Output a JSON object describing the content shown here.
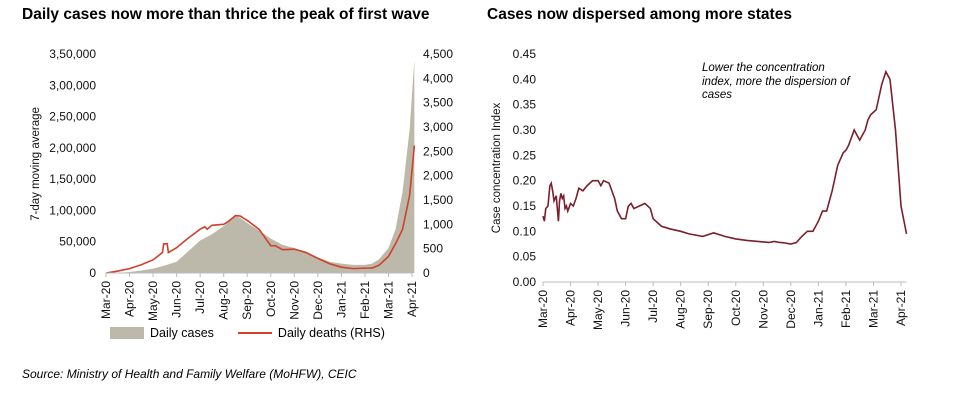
{
  "source": "Source: Ministry of Health and Family Welfare (MoHFW), CEIC",
  "chart_data": [
    {
      "type": "area",
      "title": "Daily cases now more than thrice the peak of first wave",
      "ylabel": "7-day moving average",
      "y2label": "",
      "categories": [
        "Mar-20",
        "Apr-20",
        "May-20",
        "Jun-20",
        "Jul-20",
        "Aug-20",
        "Sep-20",
        "Oct-20",
        "Nov-20",
        "Dec-20",
        "Jan-21",
        "Feb-21",
        "Mar-21",
        "Apr-21"
      ],
      "yticks": [
        "0",
        "50,000",
        "1,00,000",
        "1,50,000",
        "2,00,000",
        "2,50,000",
        "3,00,000",
        "3,50,000"
      ],
      "ylim": [
        0,
        350000
      ],
      "y2ticks": [
        "0",
        "500",
        "1,000",
        "1,500",
        "2,000",
        "2,500",
        "3,000",
        "3,500",
        "4,000",
        "4,500"
      ],
      "y2lim": [
        0,
        4500
      ],
      "legend": [
        "Daily cases",
        "Daily deaths (RHS)"
      ],
      "legend_position": "bottom",
      "series": [
        {
          "name": "Daily cases",
          "axis": "left",
          "color": "#bcb9aa",
          "x": [
            0,
            0.5,
            1,
            1.5,
            2,
            2.5,
            3,
            3.5,
            4,
            4.5,
            5,
            5.3,
            5.5,
            5.7,
            6,
            6.5,
            7,
            7.5,
            8,
            8.5,
            9,
            9.5,
            10,
            10.5,
            11,
            11.3,
            11.6,
            12,
            12.3,
            12.6,
            12.9,
            13.1
          ],
          "values": [
            0,
            200,
            1500,
            4000,
            7000,
            12000,
            18000,
            35000,
            52000,
            62000,
            75000,
            84000,
            91000,
            88000,
            80000,
            68000,
            55000,
            45000,
            40000,
            33000,
            25000,
            18000,
            15000,
            13000,
            13000,
            15000,
            22000,
            40000,
            70000,
            130000,
            230000,
            340000
          ]
        },
        {
          "name": "Daily deaths (RHS)",
          "axis": "right",
          "color": "#d0402a",
          "x": [
            0,
            0.5,
            1,
            1.5,
            2,
            2.4,
            2.45,
            2.6,
            2.65,
            3,
            3.5,
            4,
            4.2,
            4.3,
            4.5,
            5,
            5.2,
            5.5,
            5.7,
            6,
            6.5,
            7,
            7.2,
            7.5,
            8,
            8.5,
            9,
            9.5,
            10,
            10.5,
            11,
            11.3,
            11.6,
            12,
            12.3,
            12.6,
            12.9,
            13.1
          ],
          "values": [
            0,
            40,
            90,
            170,
            270,
            420,
            600,
            600,
            420,
            520,
            720,
            900,
            950,
            900,
            980,
            1000,
            1060,
            1180,
            1170,
            1080,
            900,
            560,
            560,
            480,
            490,
            420,
            300,
            190,
            120,
            90,
            100,
            100,
            160,
            340,
            600,
            900,
            1600,
            2620
          ]
        }
      ]
    },
    {
      "type": "line",
      "title": "Cases now dispersed among more states",
      "ylabel": "Case concentration Index",
      "categories": [
        "Mar-20",
        "Apr-20",
        "May-20",
        "Jun-20",
        "Jul-20",
        "Aug-20",
        "Sep-20",
        "Oct-20",
        "Nov-20",
        "Dec-20",
        "Jan-21",
        "Feb-21",
        "Mar-21",
        "Apr-21"
      ],
      "yticks": [
        "0.00",
        "0.05",
        "0.10",
        "0.15",
        "0.20",
        "0.25",
        "0.30",
        "0.35",
        "0.40",
        "0.45"
      ],
      "ylim": [
        0,
        0.45
      ],
      "annotation": "Lower the concentration index, more the dispersion of cases",
      "series": [
        {
          "name": "Case concentration Index",
          "color": "#7a1f2b",
          "x": [
            0,
            0.05,
            0.1,
            0.18,
            0.25,
            0.3,
            0.35,
            0.4,
            0.48,
            0.52,
            0.56,
            0.6,
            0.65,
            0.7,
            0.75,
            0.8,
            0.85,
            0.9,
            1.0,
            1.1,
            1.2,
            1.3,
            1.45,
            1.6,
            1.8,
            2.0,
            2.1,
            2.2,
            2.4,
            2.6,
            2.7,
            2.85,
            3.0,
            3.1,
            3.2,
            3.3,
            3.5,
            3.7,
            3.9,
            4.0,
            4.3,
            4.6,
            5.0,
            5.3,
            5.6,
            5.8,
            6.2,
            6.6,
            7.0,
            7.4,
            7.8,
            8.2,
            8.4,
            8.6,
            8.8,
            9.0,
            9.2,
            9.4,
            9.6,
            9.8,
            10.0,
            10.15,
            10.3,
            10.5,
            10.7,
            10.9,
            11.0,
            11.1,
            11.3,
            11.5,
            11.7,
            11.8,
            11.9,
            12.1,
            12.3,
            12.45,
            12.6,
            12.8,
            13.0,
            13.2
          ],
          "values": [
            0.13,
            0.12,
            0.145,
            0.15,
            0.19,
            0.195,
            0.18,
            0.16,
            0.17,
            0.145,
            0.12,
            0.16,
            0.175,
            0.165,
            0.17,
            0.145,
            0.15,
            0.14,
            0.155,
            0.15,
            0.165,
            0.185,
            0.18,
            0.19,
            0.2,
            0.2,
            0.19,
            0.2,
            0.195,
            0.165,
            0.14,
            0.125,
            0.125,
            0.15,
            0.155,
            0.145,
            0.15,
            0.155,
            0.145,
            0.125,
            0.11,
            0.105,
            0.1,
            0.095,
            0.092,
            0.09,
            0.097,
            0.09,
            0.085,
            0.082,
            0.08,
            0.078,
            0.08,
            0.078,
            0.077,
            0.075,
            0.078,
            0.09,
            0.1,
            0.1,
            0.12,
            0.14,
            0.14,
            0.18,
            0.23,
            0.255,
            0.26,
            0.27,
            0.3,
            0.28,
            0.3,
            0.32,
            0.33,
            0.34,
            0.39,
            0.415,
            0.4,
            0.3,
            0.15,
            0.095
          ]
        }
      ]
    }
  ]
}
